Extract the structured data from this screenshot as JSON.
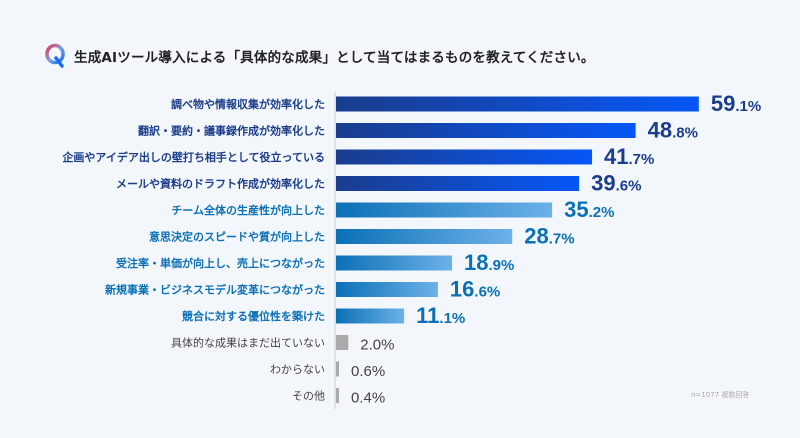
{
  "title": "生成AIツール導入による「具体的な成果」として当てはまるものを教えてください。",
  "icon": "q-letter-icon",
  "note": "n=1077 複数回答",
  "colors": {
    "dark_group": [
      "#1b3d8c",
      "#0657f8"
    ],
    "light_group": [
      "#0b70b6",
      "#6cb1e8"
    ],
    "gray_group": [
      "#aaaaaa",
      "#aaaaaa"
    ],
    "dark_text": "#1b3d8c",
    "light_text": "#0b70b6",
    "gray_text": "#444444"
  },
  "chart_data": {
    "type": "bar",
    "orientation": "horizontal",
    "title": "生成AIツール導入による「具体的な成果」として当てはまるものを教えてください。",
    "categories": [
      "調べ物や情報収集が効率化した",
      "翻訳・要約・議事録作成が効率化した",
      "企画やアイデア出しの壁打ち相手として役立っている",
      "メールや資料のドラフト作成が効率化した",
      "チーム全体の生産性が向上した",
      "意思決定のスピードや質が向上した",
      "受注率・単価が向上し、売上につながった",
      "新規事業・ビジネスモデル変革につながった",
      "競合に対する優位性を築けた",
      "具体的な成果はまだ出ていない",
      "わからない",
      "その他"
    ],
    "values": [
      59.1,
      48.8,
      41.7,
      39.6,
      35.2,
      28.7,
      18.9,
      16.6,
      11.1,
      2.0,
      0.6,
      0.4
    ],
    "value_labels": [
      "59.1%",
      "48.8%",
      "41.7%",
      "39.6%",
      "35.2%",
      "28.7%",
      "18.9%",
      "16.6%",
      "11.1%",
      "2.0%",
      "0.6%",
      "0.4%"
    ],
    "groups": [
      "dark",
      "dark",
      "dark",
      "dark",
      "light",
      "light",
      "light",
      "light",
      "light",
      "gray",
      "gray",
      "gray"
    ],
    "unit": "%",
    "xlim": [
      0,
      60
    ],
    "grid": false,
    "legend": "none"
  }
}
